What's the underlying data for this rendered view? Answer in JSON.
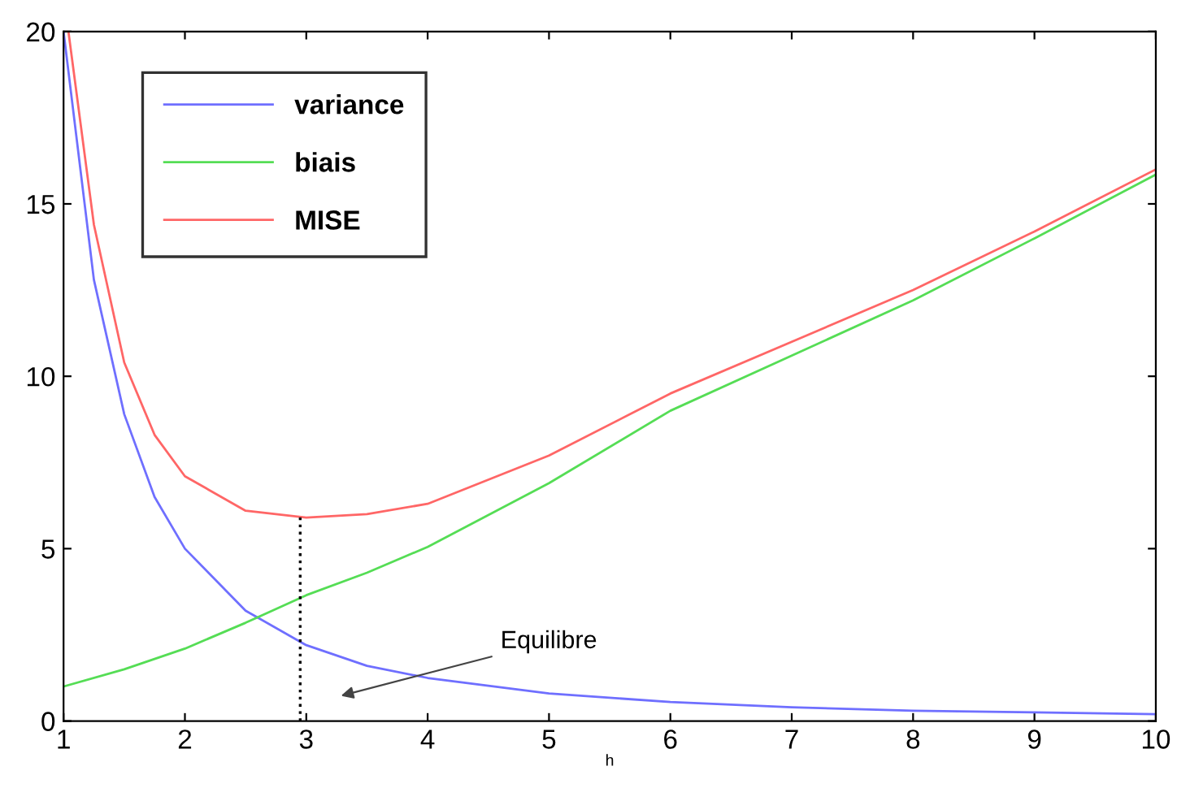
{
  "chart_data": {
    "type": "line",
    "xlabel": "h",
    "xlim": [
      1,
      10
    ],
    "ylim": [
      0,
      20
    ],
    "xticks": [
      1,
      2,
      3,
      4,
      5,
      6,
      7,
      8,
      9,
      10
    ],
    "yticks": [
      0,
      5,
      10,
      15,
      20
    ],
    "grid": false,
    "legend": "top left",
    "line_style": "solid",
    "marker": "none",
    "series": [
      {
        "name": "variance",
        "color": "#6f6fff",
        "x": [
          1,
          1.25,
          1.5,
          1.75,
          2,
          2.5,
          3,
          3.5,
          4,
          5,
          6,
          7,
          8,
          9,
          10
        ],
        "values": [
          20,
          12.8,
          8.9,
          6.5,
          5.0,
          3.2,
          2.2,
          1.6,
          1.25,
          0.8,
          0.55,
          0.4,
          0.3,
          0.25,
          0.2
        ]
      },
      {
        "name": "biais",
        "color": "#55dd55",
        "x": [
          1,
          1.5,
          2,
          2.5,
          3,
          3.5,
          4,
          5,
          6,
          7,
          8,
          9,
          10
        ],
        "values": [
          1.0,
          1.5,
          2.1,
          2.85,
          3.65,
          4.3,
          5.05,
          6.9,
          9.0,
          10.6,
          12.2,
          14.0,
          15.85
        ]
      },
      {
        "name": "MISE",
        "color": "#ff6666",
        "x": [
          1.04,
          1.25,
          1.5,
          1.75,
          2,
          2.5,
          3,
          3.5,
          4,
          5,
          6,
          7,
          8,
          9,
          10
        ],
        "values": [
          20,
          14.4,
          10.4,
          8.3,
          7.1,
          6.1,
          5.9,
          6.0,
          6.3,
          7.7,
          9.5,
          11.0,
          12.5,
          14.2,
          16.0
        ]
      }
    ],
    "ref_lines": [
      {
        "axis": "x",
        "value": 2.95,
        "color": "#000000",
        "line_style": "dotted"
      }
    ],
    "annotations": [
      "Equilibre"
    ]
  }
}
